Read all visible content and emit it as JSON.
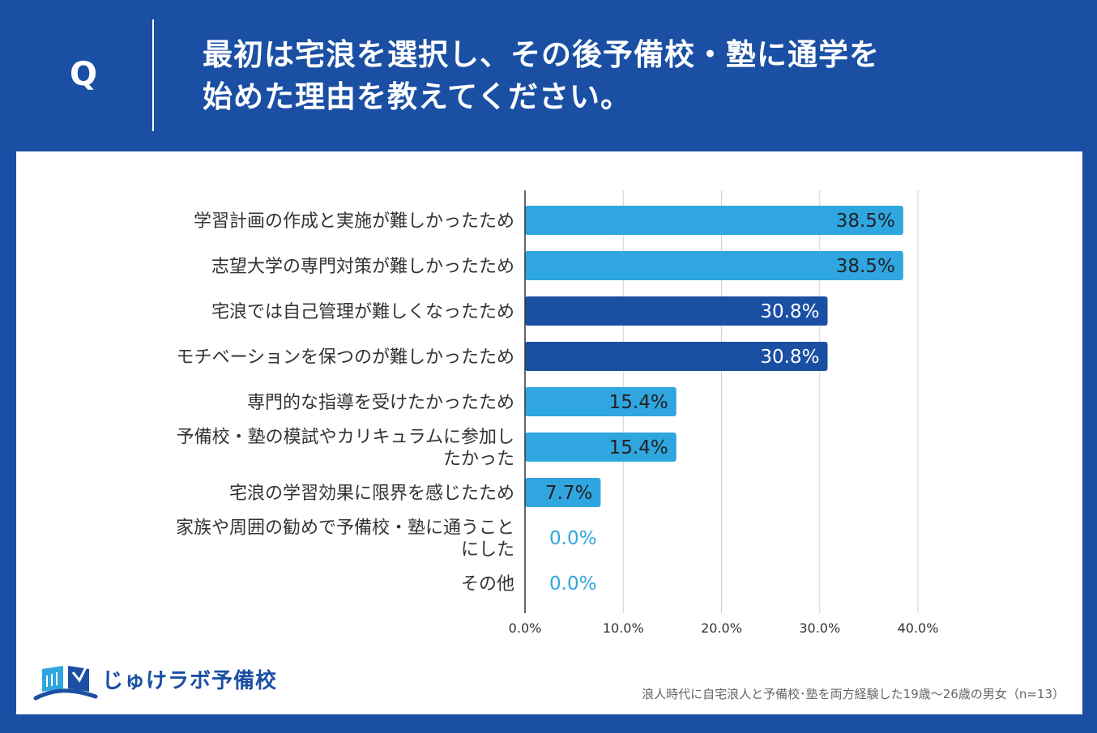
{
  "header": {
    "q_label": "Q",
    "question_line1": "最初は宅浪を選択し、その後予備校・塾に通学を",
    "question_line2": "始めた理由を教えてください。"
  },
  "colors": {
    "background": "#1a4fa3",
    "bar_light": "#2fa6e0",
    "bar_dark": "#1a4fa3",
    "zero_label": "#2fa6e0"
  },
  "chart_data": {
    "type": "bar",
    "orientation": "horizontal",
    "categories": [
      [
        "学習計画の作成と実施が難しかったため"
      ],
      [
        "志望大学の専門対策が難しかったため"
      ],
      [
        "宅浪では自己管理が難しくなったため"
      ],
      [
        "モチベーションを保つのが難しかったため"
      ],
      [
        "専門的な指導を受けたかったため"
      ],
      [
        "予備校・塾の模試やカリキュラムに参加し",
        "たかった"
      ],
      [
        "宅浪の学習効果に限界を感じたため"
      ],
      [
        "家族や周囲の勧めで予備校・塾に通うこと",
        "にした"
      ],
      [
        "その他"
      ]
    ],
    "values": [
      38.5,
      38.5,
      30.8,
      30.8,
      15.4,
      15.4,
      7.7,
      0.0,
      0.0
    ],
    "data_labels": [
      "38.5%",
      "38.5%",
      "30.8%",
      "30.8%",
      "15.4%",
      "15.4%",
      "7.7%",
      "0.0%",
      "0.0%"
    ],
    "highlight": [
      false,
      false,
      true,
      true,
      false,
      false,
      false,
      false,
      false
    ],
    "xlim": [
      0,
      40
    ],
    "x_ticks": [
      "0.0%",
      "10.0%",
      "20.0%",
      "30.0%",
      "40.0%"
    ],
    "grid": true
  },
  "logo": {
    "text": "じゅけラボ予備校"
  },
  "footnote": "浪人時代に自宅浪人と予備校･塾を両方経験した19歳～26歳の男女（n=13）"
}
